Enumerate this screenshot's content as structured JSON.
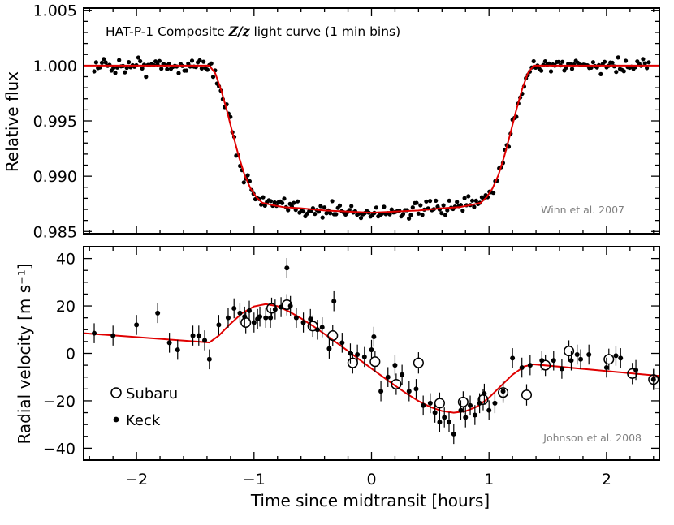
{
  "chart_data": [
    {
      "type": "scatter",
      "title": "HAT-P-1 Composite Z/z light curve (1 min bins)",
      "title_parts": [
        "HAT-P-1 Composite ",
        "Z/z",
        " light curve (1 min bins)"
      ],
      "xlabel": "",
      "ylabel": "Relative flux",
      "xlim": [
        -2.45,
        2.45
      ],
      "ylim": [
        0.9848,
        1.0052
      ],
      "yticks": [
        0.985,
        0.99,
        0.995,
        1.0,
        1.005
      ],
      "ytick_labels": [
        "0.985",
        "0.990",
        "0.995",
        "1.000",
        "1.005"
      ],
      "credit": "Winn et al. 2007",
      "model_color": "#e00000",
      "model": {
        "x": [
          -2.45,
          -1.38,
          -1.33,
          -1.28,
          -1.23,
          -1.18,
          -1.13,
          -1.08,
          -1.03,
          -0.98,
          -0.93,
          -0.85,
          -0.75,
          -0.6,
          -0.4,
          -0.2,
          0.0,
          0.2,
          0.4,
          0.6,
          0.75,
          0.85,
          0.93,
          0.98,
          1.03,
          1.08,
          1.13,
          1.18,
          1.23,
          1.28,
          1.33,
          1.38,
          2.45
        ],
        "y": [
          1.0,
          1.0,
          0.9993,
          0.9978,
          0.9959,
          0.9938,
          0.9918,
          0.9901,
          0.9889,
          0.9881,
          0.9876,
          0.9874,
          0.9872,
          0.9871,
          0.9869,
          0.9868,
          0.9867,
          0.9868,
          0.9869,
          0.9871,
          0.9872,
          0.9874,
          0.9876,
          0.9881,
          0.9889,
          0.9901,
          0.9918,
          0.9938,
          0.9959,
          0.9978,
          0.9993,
          1.0,
          1.0
        ]
      },
      "points_note": "approximately 290 one-minute binned flux measurements scattering about the model with ~0.0004 rms",
      "point_count": 290
    },
    {
      "type": "scatter",
      "title": "",
      "xlabel": "Time since midtransit [hours]",
      "ylabel": "Radial velocity [m s⁻¹]",
      "xlim": [
        -2.45,
        2.45
      ],
      "ylim": [
        -45,
        45
      ],
      "xticks": [
        -2,
        -1,
        0,
        1,
        2
      ],
      "xtick_labels": [
        "−2",
        "−1",
        "0",
        "1",
        "2"
      ],
      "yticks": [
        -40,
        -20,
        0,
        20,
        40
      ],
      "ytick_labels": [
        "−40",
        "−20",
        "0",
        "20",
        "40"
      ],
      "credit": "Johnson et al. 2008",
      "legend": {
        "position": "left",
        "entries": [
          "Subaru",
          "Keck"
        ]
      },
      "model_color": "#e00000",
      "model": {
        "x": [
          -2.45,
          -1.38,
          -1.3,
          -1.2,
          -1.1,
          -1.0,
          -0.9,
          -0.8,
          -0.7,
          -0.6,
          -0.5,
          -0.4,
          -0.3,
          -0.2,
          -0.1,
          0.0,
          0.1,
          0.2,
          0.3,
          0.4,
          0.5,
          0.6,
          0.7,
          0.8,
          0.9,
          1.0,
          1.1,
          1.2,
          1.3,
          1.38,
          2.45
        ],
        "y": [
          8.5,
          4.6,
          7.5,
          12.5,
          17.0,
          19.8,
          20.8,
          19.9,
          17.6,
          14.8,
          11.6,
          8.2,
          4.6,
          1.0,
          -2.7,
          -6.4,
          -10.0,
          -13.6,
          -17.0,
          -20.1,
          -22.6,
          -24.3,
          -25.0,
          -24.4,
          -22.4,
          -18.7,
          -13.8,
          -9.0,
          -5.5,
          -4.6,
          -9.5
        ]
      },
      "series": [
        {
          "name": "Keck",
          "marker": "filled-circle",
          "x": [
            -2.36,
            -2.2,
            -2.0,
            -1.82,
            -1.72,
            -1.65,
            -1.52,
            -1.47,
            -1.42,
            -1.38,
            -1.3,
            -1.22,
            -1.17,
            -1.12,
            -1.08,
            -1.04,
            -1.0,
            -0.97,
            -0.95,
            -0.9,
            -0.86,
            -0.82,
            -0.77,
            -0.72,
            -0.69,
            -0.64,
            -0.58,
            -0.52,
            -0.46,
            -0.42,
            -0.36,
            -0.32,
            -0.25,
            -0.18,
            -0.12,
            -0.06,
            0.0,
            0.02,
            0.08,
            0.14,
            0.2,
            0.26,
            0.32,
            0.38,
            0.44,
            0.5,
            0.54,
            0.58,
            0.62,
            0.66,
            0.7,
            0.76,
            0.8,
            0.84,
            0.88,
            0.92,
            0.96,
            1.0,
            1.05,
            1.12,
            1.2,
            1.28,
            1.35,
            1.45,
            1.55,
            1.62,
            1.7,
            1.75,
            1.78,
            1.85,
            2.0,
            2.08,
            2.12,
            2.25,
            2.4
          ],
          "y": [
            8.5,
            7.5,
            12,
            17,
            4.5,
            1.5,
            7.5,
            7.5,
            5.5,
            -2.5,
            12,
            15,
            19,
            17,
            15.5,
            18,
            13,
            14.5,
            15.5,
            15,
            15,
            18.5,
            19.5,
            36,
            20,
            15,
            13,
            14.5,
            10,
            11,
            2,
            22,
            4.5,
            0,
            -0.5,
            -1.5,
            1.5,
            7,
            -16,
            -10,
            -5,
            -9,
            -16,
            -15,
            -22,
            -21,
            -25,
            -29,
            -27,
            -29,
            -34,
            -24,
            -27,
            -22,
            -26,
            -21,
            -17,
            -24,
            -21,
            -16,
            -2,
            -6,
            -5,
            -3,
            -3,
            -6.5,
            -3,
            -0.5,
            -2.5,
            -0.5,
            -6,
            -1,
            -2,
            -7,
            -11
          ]
        },
        {
          "name": "Subaru",
          "marker": "open-circle",
          "x": [
            -1.07,
            -0.85,
            -0.72,
            -0.5,
            -0.33,
            -0.16,
            0.03,
            0.21,
            0.4,
            0.58,
            0.78,
            0.95,
            1.12,
            1.32,
            1.48,
            1.68,
            2.02,
            2.22,
            2.4
          ],
          "y": [
            13,
            19,
            20.5,
            11.5,
            7.5,
            -4,
            -3.5,
            -13,
            -4,
            -21,
            -20.5,
            -19.5,
            -16.5,
            -17.5,
            -5,
            1,
            -2.5,
            -8.5,
            -11
          ]
        }
      ]
    }
  ]
}
